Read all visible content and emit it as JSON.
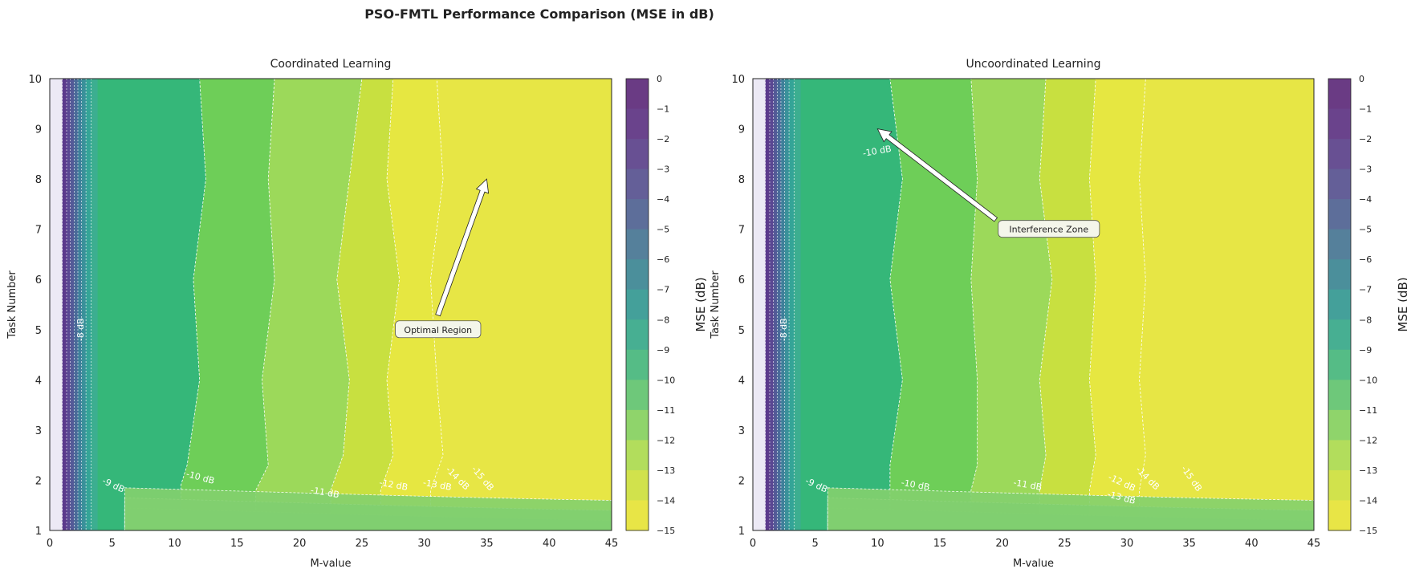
{
  "figure_title": "PSO-FMTL Performance Comparison (MSE in dB)",
  "colorbar_label": "MSE (dB)",
  "colormap": [
    "#fde725",
    "#b5de2b",
    "#6ece58",
    "#35b779",
    "#1f9e89",
    "#26828e",
    "#31688e",
    "#3e4989",
    "#482878",
    "#440154"
  ],
  "chart_data": [
    {
      "type": "heatmap",
      "title": "Coordinated Learning",
      "xlabel": "M-value",
      "ylabel": "Task Number",
      "xlim": [
        0,
        45
      ],
      "ylim": [
        1,
        10
      ],
      "xticks": [
        "0",
        "5",
        "10",
        "15",
        "20",
        "25",
        "30",
        "35",
        "40",
        "45"
      ],
      "yticks": [
        "1",
        "2",
        "3",
        "4",
        "5",
        "6",
        "7",
        "8",
        "9",
        "10"
      ],
      "colorbar_ticks": [
        "0",
        "−1",
        "−2",
        "−3",
        "−4",
        "−5",
        "−6",
        "−7",
        "−8",
        "−9",
        "−10",
        "−11",
        "−12",
        "−13",
        "−14",
        "−15"
      ],
      "clim": [
        -15,
        0
      ],
      "contour_bands": [
        {
          "upper_db": -10,
          "boundary": [
            [
              12,
              10
            ],
            [
              12.5,
              8
            ],
            [
              11.5,
              6
            ],
            [
              12,
              4
            ],
            [
              11,
              2.3
            ],
            [
              10.5,
              1.9
            ]
          ]
        },
        {
          "upper_db": -11,
          "boundary": [
            [
              18,
              10
            ],
            [
              17.5,
              8
            ],
            [
              18,
              6
            ],
            [
              17,
              4
            ],
            [
              17.5,
              2.3
            ],
            [
              16.5,
              1.8
            ]
          ]
        },
        {
          "upper_db": -12,
          "boundary": [
            [
              25,
              10
            ],
            [
              24,
              8
            ],
            [
              23,
              6
            ],
            [
              24,
              4
            ],
            [
              23.5,
              2.5
            ],
            [
              22.5,
              1.8
            ]
          ]
        },
        {
          "upper_db": -13,
          "boundary": [
            [
              27.5,
              10
            ],
            [
              27,
              8
            ],
            [
              28,
              6
            ],
            [
              27,
              4
            ],
            [
              27.5,
              2.5
            ],
            [
              26.5,
              1.8
            ]
          ]
        },
        {
          "upper_db": -14,
          "boundary": [
            [
              31,
              10
            ],
            [
              31.5,
              8
            ],
            [
              30.5,
              6
            ],
            [
              31,
              4
            ],
            [
              31.5,
              2.5
            ],
            [
              30.5,
              1.8
            ]
          ]
        }
      ],
      "contour_labels": [
        "-8 dB",
        "-9 dB",
        "-10 dB",
        "-11 dB",
        "-12 dB",
        "-13 dB",
        "-14 dB",
        "-15 dB"
      ],
      "annotation": {
        "text": "Optimal Region",
        "xy": [
          35,
          8
        ],
        "xytext": [
          28,
          5
        ]
      }
    },
    {
      "type": "heatmap",
      "title": "Uncoordinated Learning",
      "xlabel": "M-value",
      "ylabel": "Task Number",
      "xlim": [
        0,
        45
      ],
      "ylim": [
        1,
        10
      ],
      "xticks": [
        "0",
        "5",
        "10",
        "15",
        "20",
        "25",
        "30",
        "35",
        "40",
        "45"
      ],
      "yticks": [
        "1",
        "2",
        "3",
        "4",
        "5",
        "6",
        "7",
        "8",
        "9",
        "10"
      ],
      "colorbar_ticks": [
        "0",
        "−1",
        "−2",
        "−3",
        "−4",
        "−5",
        "−6",
        "−7",
        "−8",
        "−9",
        "−10",
        "−11",
        "−12",
        "−13",
        "−14",
        "−15"
      ],
      "clim": [
        -15,
        0
      ],
      "contour_bands": [
        {
          "upper_db": -10,
          "boundary": [
            [
              11,
              10
            ],
            [
              12,
              8
            ],
            [
              11,
              6
            ],
            [
              12,
              4
            ],
            [
              11,
              2.3
            ],
            [
              11,
              1.9
            ]
          ]
        },
        {
          "upper_db": -11,
          "boundary": [
            [
              17.5,
              10
            ],
            [
              18,
              8
            ],
            [
              17.5,
              6
            ],
            [
              18,
              4
            ],
            [
              18,
              2.3
            ],
            [
              17.5,
              1.8
            ]
          ]
        },
        {
          "upper_db": -12,
          "boundary": [
            [
              23.5,
              10
            ],
            [
              23,
              8
            ],
            [
              24,
              6
            ],
            [
              23,
              4
            ],
            [
              23.5,
              2.5
            ],
            [
              23,
              1.8
            ]
          ]
        },
        {
          "upper_db": -13,
          "boundary": [
            [
              27.5,
              10
            ],
            [
              27,
              8
            ],
            [
              27.5,
              6
            ],
            [
              27,
              4
            ],
            [
              27.5,
              2.5
            ],
            [
              27,
              1.8
            ]
          ]
        },
        {
          "upper_db": -14,
          "boundary": [
            [
              31.5,
              10
            ],
            [
              31,
              8
            ],
            [
              31.5,
              6
            ],
            [
              31,
              4
            ],
            [
              31.5,
              2.5
            ],
            [
              31,
              1.8
            ]
          ]
        }
      ],
      "contour_labels": [
        "-8 dB",
        "-9 dB",
        "-10 dB",
        "-10 dB",
        "-11 dB",
        "-12 dB",
        "-13 dB",
        "-14 dB",
        "-15 dB"
      ],
      "annotation": {
        "text": "Interference Zone",
        "xy": [
          10,
          9
        ],
        "xytext": [
          20,
          7
        ]
      }
    }
  ]
}
